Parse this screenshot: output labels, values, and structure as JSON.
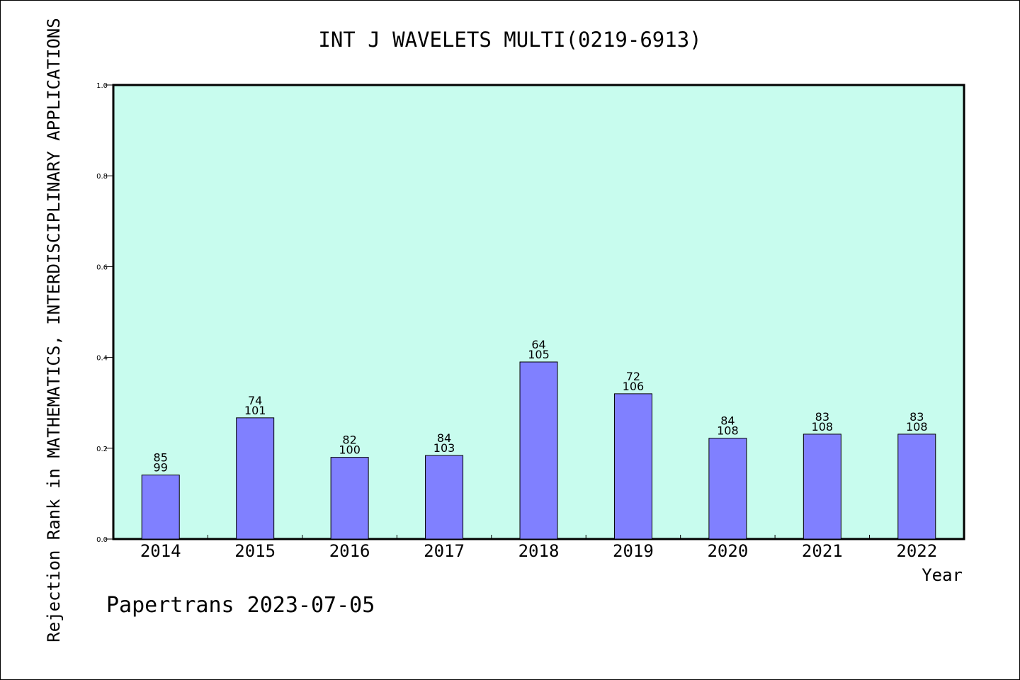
{
  "chart_data": {
    "type": "bar",
    "title": "INT J WAVELETS MULTI(0219-6913)",
    "xlabel": "Year",
    "ylabel": "Rejection Rank in MATHEMATICS, INTERDISCIPLINARY APPLICATIONS",
    "categories": [
      "2014",
      "2015",
      "2016",
      "2017",
      "2018",
      "2019",
      "2020",
      "2021",
      "2022"
    ],
    "series": [
      {
        "values": [
          0.141,
          0.267,
          0.18,
          0.184,
          0.39,
          0.32,
          0.222,
          0.231,
          0.231
        ]
      }
    ],
    "bar_labels": [
      [
        "85",
        "99"
      ],
      [
        "74",
        "101"
      ],
      [
        "82",
        "100"
      ],
      [
        "84",
        "103"
      ],
      [
        "64",
        "105"
      ],
      [
        "72",
        "106"
      ],
      [
        "84",
        "108"
      ],
      [
        "83",
        "108"
      ],
      [
        "83",
        "108"
      ]
    ],
    "ylim": [
      0,
      1.0
    ],
    "yticks": [
      "0.0",
      "0.2",
      "0.4",
      "0.6",
      "0.8",
      "1.0"
    ],
    "grid": false,
    "colors": {
      "plot_background": "#c8fcee",
      "bar_fill": "#8080ff",
      "bar_edge": "#000000"
    }
  },
  "footer": "Papertrans 2023-07-05"
}
